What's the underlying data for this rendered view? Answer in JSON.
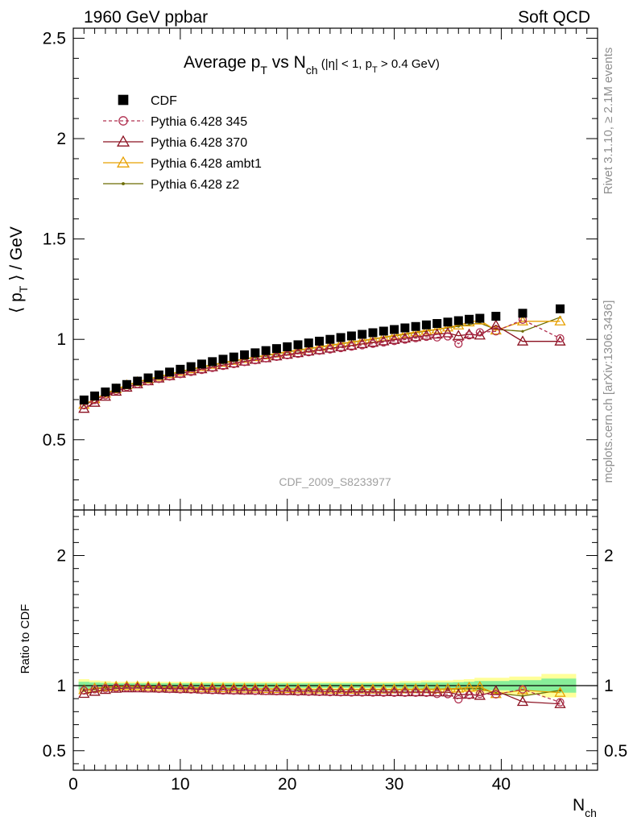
{
  "header": {
    "left": "1960 GeV ppbar",
    "right": "Soft QCD"
  },
  "title": {
    "pre": "Average p",
    "pre_sub": "T",
    "mid": " vs N",
    "mid_sub": "ch",
    "cond1": " (|η| < 1, p",
    "cond_sub": "T",
    "cond2": " > 0.4 GeV)"
  },
  "ylabel_top": {
    "pre": "⟨ p",
    "sub": "T",
    "post": " ⟩ / GeV"
  },
  "ylabel_bottom": "Ratio to CDF",
  "xlabel": {
    "main": "N",
    "sub": "ch"
  },
  "watermark": "CDF_2009_S8233977",
  "side_text": {
    "rivet": "Rivet 3.1.10, ≥ 2.1M events",
    "mcplots": "mcplots.cern.ch [arXiv:1306.3436]"
  },
  "legend": [
    {
      "label": "CDF",
      "marker": "square",
      "color": "#000000",
      "line": "none"
    },
    {
      "label": "Pythia 6.428 345",
      "marker": "open-circle",
      "color": "#b03050",
      "line": "dashed"
    },
    {
      "label": "Pythia 6.428 370",
      "marker": "open-triangle",
      "color": "#8b1020",
      "line": "solid"
    },
    {
      "label": "Pythia 6.428 ambt1",
      "marker": "open-triangle",
      "color": "#e8a000",
      "line": "solid"
    },
    {
      "label": "Pythia 6.428 z2",
      "marker": "dot",
      "color": "#6b6b00",
      "line": "solid"
    }
  ],
  "chart_data": {
    "type": "line",
    "x_ticks": [
      "0",
      "10",
      "20",
      "30",
      "40"
    ],
    "xlim": [
      0,
      49
    ],
    "top": {
      "ylim": [
        0.15,
        2.55
      ],
      "y_ticks": [
        "0.5",
        "1",
        "1.5",
        "2",
        "2.5"
      ]
    },
    "ratio": {
      "ylim": [
        0.35,
        2.35
      ],
      "y_ticks": [
        "0.5",
        "1",
        "2"
      ]
    },
    "x": [
      1,
      2,
      3,
      4,
      5,
      6,
      7,
      8,
      9,
      10,
      11,
      12,
      13,
      14,
      15,
      16,
      17,
      18,
      19,
      20,
      21,
      22,
      23,
      24,
      25,
      26,
      27,
      28,
      29,
      30,
      31,
      32,
      33,
      34,
      35,
      36,
      37,
      38,
      39.5,
      42,
      45.5
    ],
    "band_colors": {
      "outer": "#ffff99",
      "inner": "#88ee99"
    },
    "series": [
      {
        "name": "CDF",
        "color": "#000000",
        "values": [
          0.698,
          0.718,
          0.738,
          0.757,
          0.775,
          0.792,
          0.808,
          0.823,
          0.837,
          0.851,
          0.864,
          0.877,
          0.889,
          0.901,
          0.912,
          0.923,
          0.933,
          0.944,
          0.954,
          0.963,
          0.973,
          0.982,
          0.991,
          1.0,
          1.009,
          1.017,
          1.025,
          1.033,
          1.041,
          1.049,
          1.057,
          1.064,
          1.072,
          1.079,
          1.086,
          1.093,
          1.1,
          1.105,
          1.115,
          1.13,
          1.152
        ],
        "ratio_band": [
          0.05,
          0.04,
          0.035,
          0.03,
          0.03,
          0.03,
          0.03,
          0.03,
          0.03,
          0.03,
          0.03,
          0.03,
          0.03,
          0.03,
          0.03,
          0.03,
          0.03,
          0.03,
          0.03,
          0.03,
          0.03,
          0.03,
          0.03,
          0.03,
          0.03,
          0.03,
          0.03,
          0.03,
          0.03,
          0.03,
          0.035,
          0.035,
          0.04,
          0.04,
          0.04,
          0.045,
          0.05,
          0.06,
          0.06,
          0.07,
          0.09
        ]
      },
      {
        "name": "Pythia 6.428 345",
        "color": "#b03050",
        "values": [
          0.672,
          0.698,
          0.722,
          0.744,
          0.763,
          0.778,
          0.791,
          0.803,
          0.815,
          0.827,
          0.838,
          0.848,
          0.858,
          0.868,
          0.877,
          0.887,
          0.896,
          0.905,
          0.913,
          0.921,
          0.928,
          0.936,
          0.943,
          0.95,
          0.957,
          0.964,
          0.971,
          0.978,
          0.985,
          0.992,
          0.999,
          1.006,
          1.013,
          1.01,
          1.015,
          0.978,
          1.02,
          1.035,
          1.04,
          1.098,
          1.005
        ]
      },
      {
        "name": "Pythia 6.428 370",
        "color": "#8b1020",
        "values": [
          0.655,
          0.685,
          0.715,
          0.74,
          0.76,
          0.777,
          0.792,
          0.806,
          0.818,
          0.83,
          0.842,
          0.852,
          0.862,
          0.872,
          0.881,
          0.89,
          0.899,
          0.907,
          0.916,
          0.924,
          0.932,
          0.94,
          0.947,
          0.955,
          0.962,
          0.969,
          0.977,
          0.984,
          0.991,
          0.998,
          1.005,
          1.012,
          1.019,
          1.025,
          1.031,
          1.018,
          1.025,
          1.02,
          1.07,
          0.99,
          0.99
        ]
      },
      {
        "name": "Pythia 6.428 ambt1",
        "color": "#e8a000",
        "values": [
          0.675,
          0.703,
          0.73,
          0.752,
          0.772,
          0.788,
          0.802,
          0.815,
          0.828,
          0.84,
          0.852,
          0.863,
          0.874,
          0.884,
          0.894,
          0.903,
          0.912,
          0.921,
          0.93,
          0.939,
          0.947,
          0.955,
          0.963,
          0.971,
          0.979,
          0.987,
          0.995,
          1.003,
          1.011,
          1.02,
          1.028,
          1.036,
          1.044,
          1.05,
          1.06,
          1.07,
          1.085,
          1.095,
          1.045,
          1.09,
          1.09
        ]
      },
      {
        "name": "Pythia 6.428 z2",
        "color": "#6b6b00",
        "values": [
          0.672,
          0.7,
          0.727,
          0.75,
          0.77,
          0.786,
          0.8,
          0.813,
          0.826,
          0.838,
          0.85,
          0.861,
          0.872,
          0.882,
          0.892,
          0.901,
          0.91,
          0.919,
          0.928,
          0.937,
          0.945,
          0.953,
          0.961,
          0.969,
          0.977,
          0.985,
          0.993,
          1.001,
          1.009,
          1.017,
          1.025,
          1.033,
          1.041,
          1.049,
          1.057,
          1.065,
          1.073,
          1.081,
          1.05,
          1.04,
          1.11
        ]
      }
    ]
  }
}
